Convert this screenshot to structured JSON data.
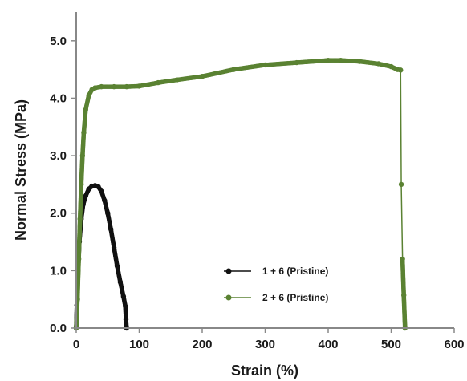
{
  "chart_data": {
    "type": "line",
    "xlabel": "Strain (%)",
    "ylabel": "Normal Stress (MPa)",
    "xlim": [
      0,
      600
    ],
    "ylim": [
      0,
      5.5
    ],
    "x_ticks": [
      "0",
      "100",
      "200",
      "300",
      "400",
      "500",
      "600"
    ],
    "y_ticks": [
      "0.0",
      "1.0",
      "2.0",
      "3.0",
      "4.0",
      "5.0"
    ],
    "grid": false,
    "legend_position": "lower-center",
    "series": [
      {
        "name": "1 + 6 (Pristine)",
        "color": "#111111",
        "marker": "circle",
        "x": [
          0,
          1,
          3,
          5,
          8,
          11,
          15,
          20,
          25,
          30,
          35,
          40,
          45,
          50,
          55,
          60,
          65,
          70,
          75,
          78,
          79,
          80
        ],
        "y": [
          0,
          0.4,
          1.0,
          1.5,
          1.9,
          2.15,
          2.3,
          2.42,
          2.47,
          2.48,
          2.46,
          2.38,
          2.22,
          2.0,
          1.72,
          1.4,
          1.08,
          0.8,
          0.55,
          0.38,
          0.15,
          0
        ]
      },
      {
        "name": "2 + 6 (Pristine)",
        "color": "#5a8232",
        "marker": "circle",
        "x": [
          0,
          2,
          4,
          6,
          8,
          10,
          12,
          15,
          20,
          25,
          30,
          40,
          60,
          80,
          100,
          130,
          160,
          200,
          250,
          300,
          350,
          400,
          420,
          450,
          480,
          500,
          510,
          515,
          516,
          518,
          520,
          522
        ],
        "y": [
          0,
          0.5,
          1.2,
          1.9,
          2.5,
          3.0,
          3.4,
          3.8,
          4.05,
          4.15,
          4.18,
          4.2,
          4.2,
          4.2,
          4.21,
          4.27,
          4.32,
          4.38,
          4.5,
          4.58,
          4.62,
          4.66,
          4.66,
          4.64,
          4.6,
          4.55,
          4.5,
          4.49,
          2.5,
          1.2,
          0.57,
          0
        ]
      }
    ]
  }
}
